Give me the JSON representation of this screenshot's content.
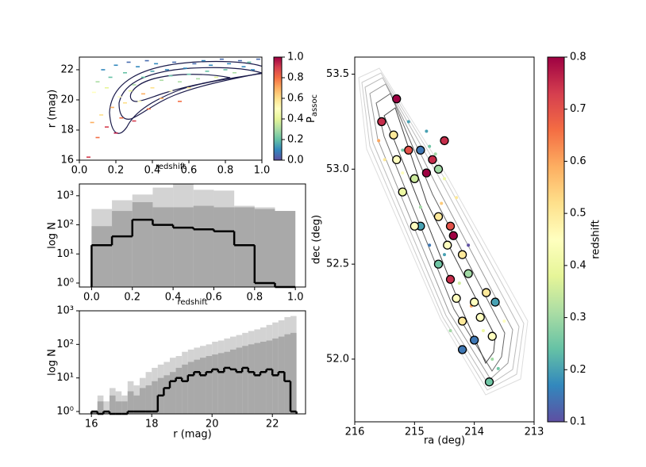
{
  "chart_data": [
    {
      "type": "scatter",
      "xlabel": "redshift",
      "ylabel": "r (mag)",
      "xlim": [
        0,
        1
      ],
      "xticks": [
        {
          "value": 0,
          "label": "0.0"
        },
        0.2,
        0.4,
        0.6,
        0.8,
        {
          "value": 1,
          "label": "1.0"
        }
      ],
      "ylim": [
        16,
        22.84
      ],
      "yticks": [
        16,
        18,
        20,
        22
      ],
      "colormap": [
        "#5e4fa2",
        "#3288bd",
        "#66c2a5",
        "#abdda4",
        "#e6f598",
        "#ffffbf",
        "#fee08b",
        "#fdae61",
        "#f46d43",
        "#d53e4f",
        "#9e0142"
      ],
      "colorbar": {
        "label": {
          "main": "P",
          "sub": "assoc"
        },
        "lim": [
          0,
          1
        ],
        "ticks": [
          {
            "value": 0,
            "label": "0.0"
          },
          0.2,
          0.4,
          0.6,
          0.8,
          {
            "value": 1,
            "label": "1.0"
          }
        ]
      },
      "series": [
        {
          "marker": "dash",
          "x": [
            0.05,
            0.07,
            0.08,
            0.1,
            0.1,
            0.12,
            0.13,
            0.15,
            0.15,
            0.17,
            0.18,
            0.2,
            0.2,
            0.22,
            0.23,
            0.25,
            0.25,
            0.27,
            0.28,
            0.3,
            0.3,
            0.32,
            0.33,
            0.35,
            0.35,
            0.37,
            0.38,
            0.4,
            0.4,
            0.42,
            0.45,
            0.45,
            0.48,
            0.5,
            0.5,
            0.52,
            0.55,
            0.55,
            0.58,
            0.6,
            0.6,
            0.63,
            0.65,
            0.68,
            0.7,
            0.72,
            0.75,
            0.78,
            0.8,
            0.82,
            0.85,
            0.88,
            0.9,
            0.93,
            0.95,
            0.98
          ],
          "y": [
            16.2,
            18.5,
            20.5,
            17.5,
            21.2,
            19.0,
            22.0,
            18.2,
            20.8,
            21.5,
            19.5,
            17.8,
            22.3,
            20.2,
            18.8,
            21.8,
            19.8,
            22.5,
            20.6,
            21.0,
            18.6,
            22.2,
            19.9,
            21.5,
            20.4,
            22.6,
            19.4,
            21.9,
            20.8,
            22.4,
            21.3,
            20.1,
            22.0,
            21.6,
            20.6,
            22.5,
            21.2,
            19.9,
            22.1,
            21.7,
            20.8,
            22.4,
            21.4,
            22.6,
            21.9,
            22.3,
            21.5,
            22.7,
            22.0,
            22.4,
            21.8,
            22.6,
            22.2,
            22.5,
            22.0,
            22.7
          ],
          "c": [
            0.9,
            0.7,
            0.5,
            0.8,
            0.3,
            0.6,
            0.1,
            0.9,
            0.4,
            0.2,
            0.7,
            0.95,
            0.1,
            0.5,
            0.8,
            0.2,
            0.6,
            0.05,
            0.4,
            0.3,
            0.9,
            0.1,
            0.5,
            0.2,
            0.7,
            0.05,
            0.8,
            0.15,
            0.6,
            0.1,
            0.3,
            0.7,
            0.1,
            0.2,
            0.5,
            0.05,
            0.3,
            0.8,
            0.1,
            0.2,
            0.6,
            0.05,
            0.3,
            0.1,
            0.2,
            0.1,
            0.4,
            0.05,
            0.2,
            0.1,
            0.3,
            0.05,
            0.1,
            0.2,
            0.1,
            0.05
          ]
        }
      ]
    },
    {
      "type": "histogram",
      "xlabel": "redshift",
      "ylabel": "log N",
      "ylog": true,
      "xlim": [
        -0.06,
        1.05
      ],
      "xticks": [
        {
          "value": 0,
          "label": "0.0"
        },
        0.2,
        0.4,
        0.6,
        0.8,
        {
          "value": 1,
          "label": "1.0"
        }
      ],
      "ylim": [
        0.73,
        2540
      ],
      "yticks": [
        {
          "value": 1,
          "label": "10⁰"
        },
        {
          "value": 10,
          "label": "10¹"
        },
        {
          "value": 100,
          "label": "10²"
        },
        {
          "value": 1000,
          "label": "10³"
        }
      ],
      "bins": [
        0,
        0.1,
        0.2,
        0.3,
        0.4,
        0.5,
        0.6,
        0.7,
        0.8,
        0.9,
        1.0
      ],
      "series": [
        {
          "color": "#d3d3d3",
          "style": "filled",
          "values": [
            350,
            700,
            1100,
            1900,
            2500,
            1600,
            1500,
            450,
            400,
            300
          ]
        },
        {
          "color": "#a9a9a9",
          "style": "filled",
          "values": [
            90,
            300,
            600,
            400,
            400,
            450,
            400,
            400,
            350,
            300
          ]
        },
        {
          "color": "#000000",
          "style": "step",
          "values": [
            20,
            40,
            150,
            100,
            80,
            70,
            60,
            20,
            1,
            0
          ]
        }
      ]
    },
    {
      "type": "histogram",
      "xlabel": "r (mag)",
      "ylabel": "log N",
      "ylog": true,
      "xlim": [
        15.6,
        23.1
      ],
      "xticks": [
        16,
        18,
        20,
        22
      ],
      "ylim": [
        0.85,
        1000
      ],
      "yticks": [
        {
          "value": 1,
          "label": "10⁰"
        },
        {
          "value": 10,
          "label": "10¹"
        },
        {
          "value": 100,
          "label": "10²"
        },
        {
          "value": 1000,
          "label": "10³"
        }
      ],
      "bins": [
        16,
        16.2,
        16.4,
        16.6,
        16.8,
        17,
        17.2,
        17.4,
        17.6,
        17.8,
        18,
        18.2,
        18.4,
        18.6,
        18.8,
        19,
        19.2,
        19.4,
        19.6,
        19.8,
        20,
        20.2,
        20.4,
        20.6,
        20.8,
        21,
        21.2,
        21.4,
        21.6,
        21.8,
        22,
        22.2,
        22.4,
        22.6,
        22.8
      ],
      "series": [
        {
          "color": "#d3d3d3",
          "style": "filled",
          "values": [
            1,
            3,
            2,
            5,
            4,
            3,
            8,
            6,
            10,
            15,
            20,
            25,
            30,
            40,
            45,
            60,
            70,
            80,
            90,
            100,
            120,
            130,
            150,
            170,
            190,
            220,
            250,
            280,
            320,
            380,
            450,
            520,
            650,
            700
          ]
        },
        {
          "color": "#a9a9a9",
          "style": "filled",
          "values": [
            1,
            2,
            1,
            3,
            2,
            2,
            4,
            3,
            5,
            6,
            8,
            10,
            12,
            15,
            20,
            25,
            30,
            35,
            40,
            45,
            50,
            55,
            60,
            70,
            80,
            90,
            100,
            110,
            120,
            130,
            150,
            170,
            200,
            220
          ]
        },
        {
          "color": "#000000",
          "style": "step",
          "values": [
            1,
            0,
            1,
            0,
            0,
            0,
            1,
            1,
            1,
            1,
            1,
            3,
            5,
            8,
            10,
            8,
            12,
            15,
            12,
            15,
            18,
            15,
            20,
            18,
            15,
            20,
            15,
            12,
            15,
            18,
            12,
            15,
            8,
            1
          ]
        }
      ]
    },
    {
      "type": "scatter",
      "xlabel": "ra (deg)",
      "ylabel": "dec (deg)",
      "xlim": [
        216,
        213
      ],
      "xticks": [
        216,
        215,
        214,
        213
      ],
      "ylim": [
        51.67,
        53.59
      ],
      "yticks": [
        {
          "value": 52,
          "label": "52.0"
        },
        52.5,
        {
          "value": 53,
          "label": "53.0"
        },
        53.5
      ],
      "colormap": [
        "#5e4fa2",
        "#3288bd",
        "#66c2a5",
        "#abdda4",
        "#e6f598",
        "#ffffbf",
        "#fee08b",
        "#fdae61",
        "#f46d43",
        "#d53e4f",
        "#9e0142"
      ],
      "colorbar": {
        "label": "redshift",
        "lim": [
          0.1,
          0.8
        ],
        "ticks": [
          0.1,
          0.2,
          0.3,
          0.4,
          0.5,
          0.6,
          0.7,
          0.8
        ]
      },
      "series": [
        {
          "marker": "dot",
          "x": [
            215.6,
            215.1,
            214.8,
            214.75,
            214.65,
            215.2,
            214.5,
            214.55,
            214.3,
            214.75,
            214.5,
            214.25,
            214.05,
            213.85,
            213.7,
            213.6,
            214.4,
            215.5,
            214.9,
            213.5,
            214.1,
            215.2
          ],
          "y": [
            53.15,
            53.25,
            53.2,
            53.12,
            53.08,
            52.98,
            52.95,
            52.82,
            52.85,
            52.6,
            52.55,
            52.4,
            52.28,
            52.15,
            52.0,
            51.95,
            52.15,
            53.05,
            52.8,
            52.2,
            52.6,
            53.1
          ],
          "c": [
            0.6,
            0.2,
            0.2,
            0.25,
            0.3,
            0.45,
            0.4,
            0.55,
            0.5,
            0.15,
            0.2,
            0.35,
            0.6,
            0.4,
            0.3,
            0.25,
            0.3,
            0.5,
            0.3,
            0.45,
            0.1,
            0.25
          ]
        },
        {
          "marker": "circle",
          "x": [
            215.55,
            215.3,
            215.1,
            214.9,
            214.7,
            214.6,
            214.5,
            215.3,
            215.0,
            214.8,
            215.2,
            214.9,
            215.0,
            214.6,
            214.4,
            214.35,
            214.45,
            214.2,
            214.6,
            214.4,
            214.1,
            213.8,
            214.0,
            214.3,
            213.65,
            213.9,
            214.2,
            214.0,
            213.7,
            214.2,
            213.75,
            215.35
          ],
          "y": [
            53.25,
            53.37,
            53.1,
            53.1,
            53.05,
            53.0,
            53.15,
            53.05,
            52.95,
            52.98,
            52.88,
            52.7,
            52.7,
            52.75,
            52.7,
            52.65,
            52.6,
            52.55,
            52.5,
            52.42,
            52.45,
            52.35,
            52.3,
            52.32,
            52.3,
            52.22,
            52.2,
            52.1,
            52.12,
            52.05,
            51.88,
            53.18
          ],
          "c": [
            0.75,
            0.8,
            0.7,
            0.15,
            0.75,
            0.3,
            0.75,
            0.45,
            0.35,
            0.8,
            0.4,
            0.2,
            0.45,
            0.5,
            0.7,
            0.8,
            0.45,
            0.5,
            0.25,
            0.75,
            0.3,
            0.5,
            0.45,
            0.45,
            0.2,
            0.45,
            0.5,
            0.15,
            0.45,
            0.15,
            0.25,
            0.5
          ]
        }
      ]
    }
  ]
}
